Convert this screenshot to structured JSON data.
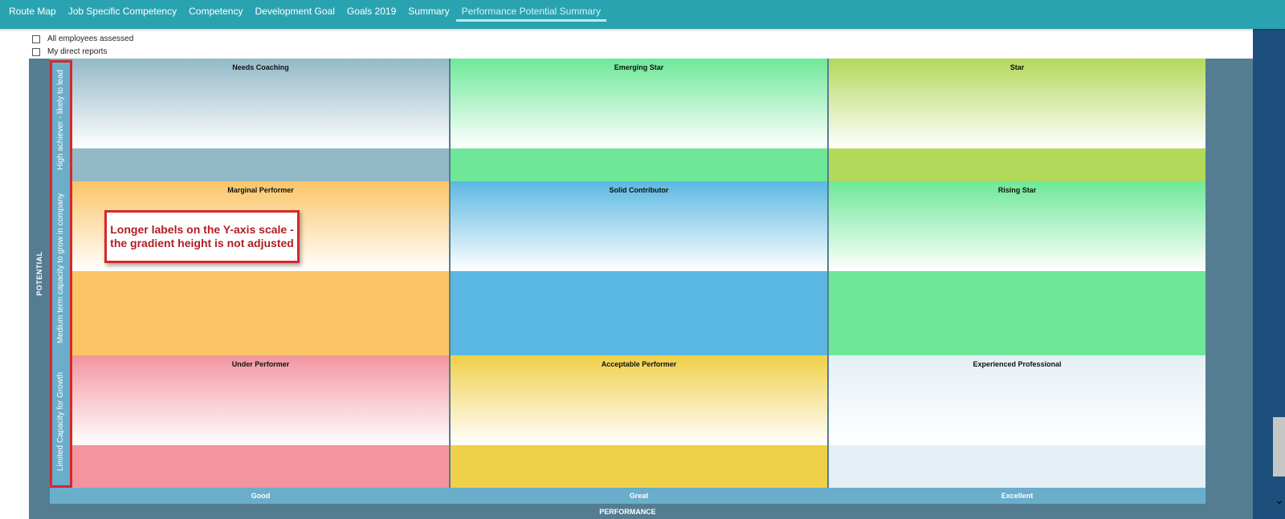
{
  "nav": {
    "tabs": [
      "Route Map",
      "Job Specific Competency",
      "Competency",
      "Development Goal",
      "Goals 2019",
      "Summary",
      "Performance Potential Summary"
    ],
    "active_tab": "Performance Potential Summary"
  },
  "filters": {
    "all_employees": "All employees assessed",
    "direct_reports": "My direct reports"
  },
  "grid": {
    "y_title": "POTENTIAL",
    "x_title": "PERFORMANCE",
    "y_labels": [
      "High achiever - likely to lead",
      "Medium term capacity to grow in company",
      "Limited Capacity for Growth"
    ],
    "x_labels": [
      "Good",
      "Great",
      "Excellent"
    ],
    "cells": [
      [
        "Needs Coaching",
        "Emerging Star",
        "Star"
      ],
      [
        "Marginal Performer",
        "Solid Contributor",
        "Rising Star"
      ],
      [
        "Under Performer",
        "Acceptable Performer",
        "Experienced Professional"
      ]
    ],
    "cell_colors": [
      [
        "#93b9c8",
        "#6ee898",
        "#b3d95a"
      ],
      [
        "#fbc567",
        "#5bb8e2",
        "#6ee898"
      ],
      [
        "#f2959f",
        "#f0d048",
        "#e4eff6"
      ]
    ]
  },
  "callout": {
    "line1": "Longer labels on the Y-axis scale -",
    "line2": "the gradient height is not adjusted"
  }
}
